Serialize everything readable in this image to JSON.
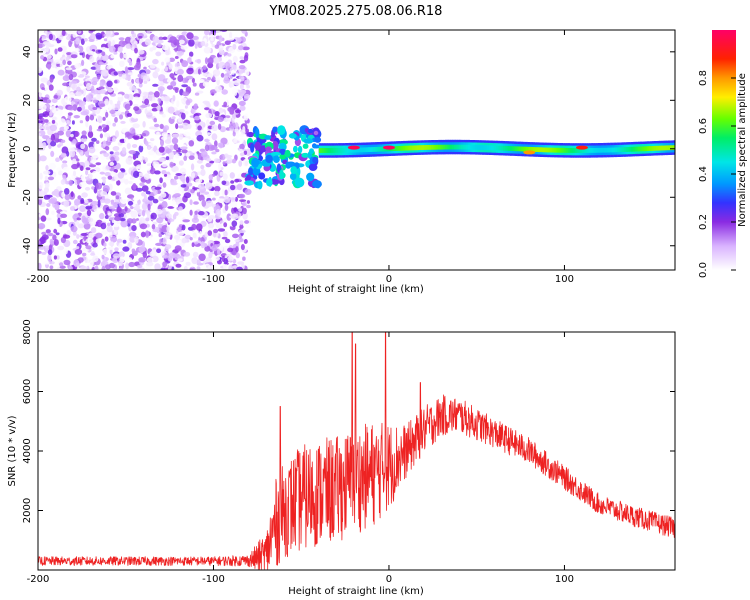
{
  "title": "YM08.2025.275.08.06.R18",
  "colors": {
    "snr_line": "#ee2222",
    "axis": "#000000"
  },
  "chart_data": [
    {
      "type": "heatmap",
      "panel": "top",
      "title": "YM08.2025.275.08.06.R18",
      "xlabel": "Height of straight line (km)",
      "ylabel": "Frequency (Hz)",
      "xlim": [
        -200,
        163
      ],
      "ylim": [
        -50,
        49
      ],
      "x_ticks": [
        -200,
        -100,
        0,
        100
      ],
      "x_tick_labels": [
        "-200",
        "-100",
        "0",
        "100"
      ],
      "y_ticks": [
        -40,
        -20,
        0,
        20,
        40
      ],
      "y_tick_labels": [
        "-40",
        "-20",
        "0",
        "20",
        "40"
      ],
      "colorbar": {
        "label": "Normalized spectral amplitude",
        "range": [
          0,
          1
        ],
        "ticks": [
          0.0,
          0.2,
          0.4,
          0.6,
          0.8
        ],
        "tick_labels": [
          "0.0",
          "0.2",
          "0.4",
          "0.6",
          "0.8"
        ],
        "colormap": "rainbow (white→purple→blue→cyan→green→yellow→red→magenta)"
      },
      "regions": [
        {
          "name": "noise",
          "x_range": [
            -200,
            -80
          ],
          "f_range": [
            -50,
            49
          ],
          "amplitude_range": [
            0.0,
            0.12
          ]
        },
        {
          "name": "onset",
          "x_range": [
            -80,
            -40
          ],
          "f_range": [
            -15,
            8
          ],
          "amplitude_range": [
            0.15,
            0.55
          ]
        },
        {
          "name": "ridge",
          "x_range": [
            -40,
            163
          ],
          "f_center": 0,
          "f_halfwidth": 3,
          "amplitude_range": [
            0.35,
            1.0
          ]
        }
      ],
      "peaks": [
        {
          "x": -20,
          "f": 0.5,
          "amplitude": 0.98
        },
        {
          "x": 0,
          "f": 0.5,
          "amplitude": 0.99
        },
        {
          "x": 80,
          "f": -1.5,
          "amplitude": 0.8
        },
        {
          "x": 110,
          "f": 0.5,
          "amplitude": 0.9
        }
      ]
    },
    {
      "type": "line",
      "panel": "bottom",
      "xlabel": "Height of straight line (km)",
      "ylabel": "SNR (10 * v/v)",
      "xlim": [
        -200,
        163
      ],
      "ylim": [
        0,
        8000
      ],
      "x_ticks": [
        -200,
        -100,
        0,
        100
      ],
      "x_tick_labels": [
        "-200",
        "-100",
        "0",
        "100"
      ],
      "y_ticks": [
        2000,
        4000,
        6000,
        8000
      ],
      "y_tick_labels": [
        "2000",
        "4000",
        "6000",
        "8000"
      ],
      "series": [
        {
          "name": "SNR",
          "envelope_x": [
            -200,
            -150,
            -100,
            -80,
            -70,
            -65,
            -60,
            -50,
            -40,
            -30,
            -20,
            -10,
            0,
            10,
            20,
            30,
            40,
            60,
            80,
            100,
            120,
            140,
            163
          ],
          "envelope_y": [
            300,
            300,
            300,
            320,
            500,
            1500,
            2000,
            2400,
            2600,
            2700,
            3000,
            3200,
            3500,
            4000,
            4700,
            5200,
            5200,
            4600,
            4000,
            3100,
            2200,
            1800,
            1400
          ],
          "noise_amplitude": [
            150,
            150,
            150,
            200,
            800,
            1500,
            1600,
            1800,
            1800,
            1800,
            1800,
            1800,
            1500,
            900,
            800,
            700,
            600,
            500,
            450,
            400,
            350,
            350,
            350
          ],
          "spikes": [
            {
              "x": -62,
              "y": 5500
            },
            {
              "x": -21,
              "y": 8000
            },
            {
              "x": -19,
              "y": 7600
            },
            {
              "x": -2,
              "y": 8000
            },
            {
              "x": 18,
              "y": 6300
            }
          ]
        }
      ]
    }
  ]
}
